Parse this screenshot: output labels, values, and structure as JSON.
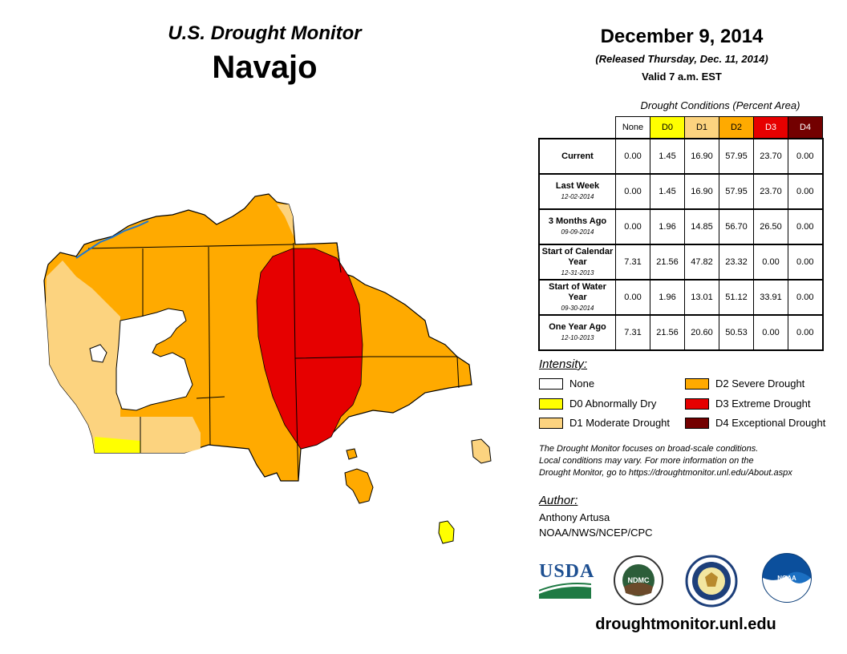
{
  "header": {
    "monitor_title": "U.S. Drought Monitor",
    "region": "Navajo",
    "date": "December 9, 2014",
    "released": "(Released Thursday, Dec. 11, 2014)",
    "valid": "Valid 7 a.m. EST"
  },
  "table": {
    "caption": "Drought Conditions (Percent Area)",
    "columns": [
      "None",
      "D0",
      "D1",
      "D2",
      "D3",
      "D4"
    ],
    "column_colors": [
      "#ffffff",
      "#ffff00",
      "#fcd37f",
      "#ffaa00",
      "#e60000",
      "#730000"
    ],
    "rows": [
      {
        "label": "Current",
        "date": "",
        "values": [
          "0.00",
          "1.45",
          "16.90",
          "57.95",
          "23.70",
          "0.00"
        ]
      },
      {
        "label": "Last Week",
        "date": "12-02-2014",
        "values": [
          "0.00",
          "1.45",
          "16.90",
          "57.95",
          "23.70",
          "0.00"
        ]
      },
      {
        "label": "3 Months Ago",
        "date": "09-09-2014",
        "values": [
          "0.00",
          "1.96",
          "14.85",
          "56.70",
          "26.50",
          "0.00"
        ]
      },
      {
        "label": "Start of Calendar Year",
        "date": "12-31-2013",
        "values": [
          "7.31",
          "21.56",
          "47.82",
          "23.32",
          "0.00",
          "0.00"
        ]
      },
      {
        "label": "Start of Water Year",
        "date": "09-30-2014",
        "values": [
          "0.00",
          "1.96",
          "13.01",
          "51.12",
          "33.91",
          "0.00"
        ]
      },
      {
        "label": "One Year Ago",
        "date": "12-10-2013",
        "values": [
          "7.31",
          "21.56",
          "20.60",
          "50.53",
          "0.00",
          "0.00"
        ]
      }
    ]
  },
  "legend": {
    "title": "Intensity:",
    "items": [
      {
        "label": "None",
        "color": "#ffffff"
      },
      {
        "label": "D0 Abnormally Dry",
        "color": "#ffff00"
      },
      {
        "label": "D1 Moderate Drought",
        "color": "#fcd37f"
      },
      {
        "label": "D2 Severe Drought",
        "color": "#ffaa00"
      },
      {
        "label": "D3 Extreme Drought",
        "color": "#e60000"
      },
      {
        "label": "D4 Exceptional Drought",
        "color": "#730000"
      }
    ]
  },
  "disclaimer": {
    "line1": "The Drought Monitor focuses on broad-scale conditions.",
    "line2": "Local conditions may vary. For more information on the",
    "line3": "Drought Monitor, go to https://droughtmonitor.unl.edu/About.aspx"
  },
  "author": {
    "title": "Author:",
    "name": "Anthony Artusa",
    "org": "NOAA/NWS/NCEP/CPC"
  },
  "logos": {
    "usda": "USDA",
    "ndmc": "NDMC",
    "noaa": "NOAA"
  },
  "website": "droughtmonitor.unl.edu",
  "colors": {
    "d0": "#ffff00",
    "d1": "#fcd37f",
    "d2": "#ffaa00",
    "d3": "#e60000",
    "d4": "#730000",
    "water": "#1f78d0"
  }
}
